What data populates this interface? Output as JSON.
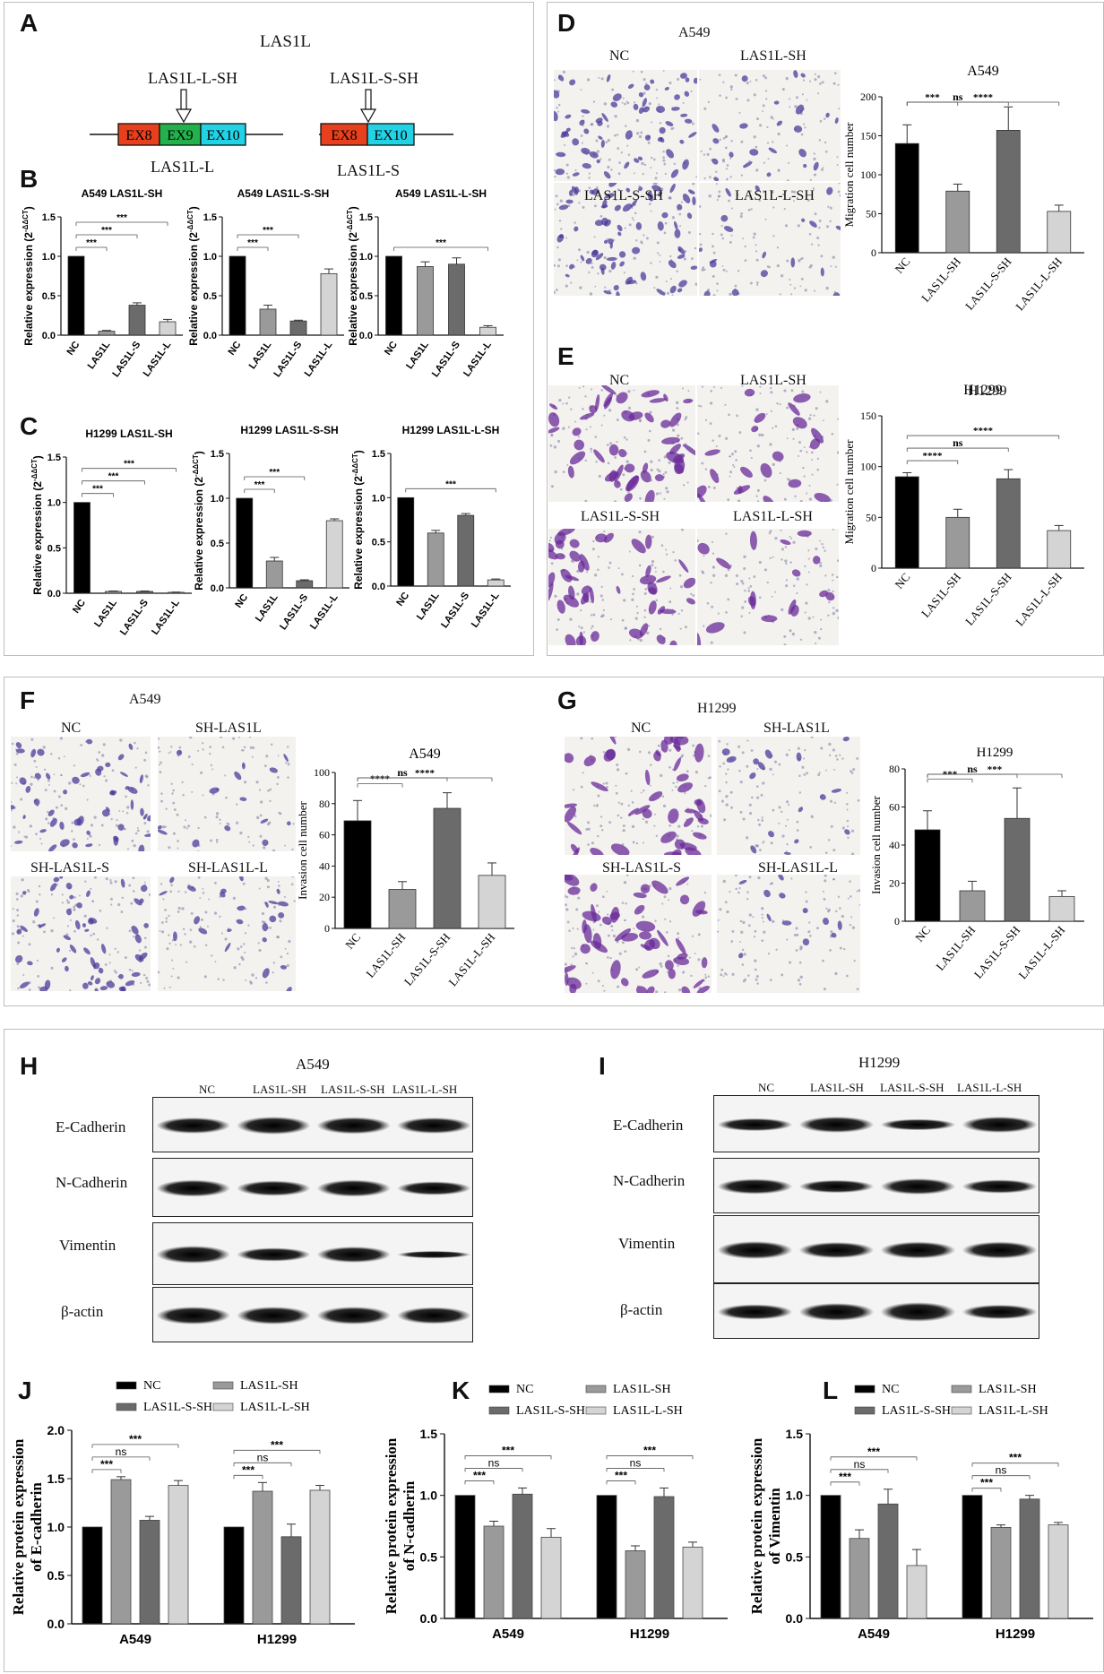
{
  "panels": {
    "A": "A",
    "B": "B",
    "C": "C",
    "D": "D",
    "E": "E",
    "F": "F",
    "G": "G",
    "H": "H",
    "I": "I",
    "J": "J",
    "K": "K",
    "L": "L"
  },
  "panel_a": {
    "gene": "LAS1L",
    "left": {
      "arrow_label": "LAS1L-L-SH",
      "isoform": "LAS1L-L",
      "exons": [
        "EX8",
        "EX9",
        "EX10"
      ]
    },
    "right": {
      "arrow_label": "LAS1L-S-SH",
      "isoform": "LAS1L-S",
      "exons": [
        "EX8",
        "EX10"
      ]
    }
  },
  "panel_d": {
    "cell": "A549",
    "tiles": [
      "NC",
      "LAS1L-SH",
      "LAS1L-S-SH",
      "LAS1L-L-SH"
    ]
  },
  "panel_e": {
    "cell": "H1299",
    "tiles": [
      "NC",
      "LAS1L-SH",
      "LAS1L-S-SH",
      "LAS1L-L-SH"
    ]
  },
  "panel_f": {
    "cell": "A549",
    "tiles": [
      "NC",
      "SH-LAS1L",
      "SH-LAS1L-S",
      "SH-LAS1L-L"
    ]
  },
  "panel_g": {
    "cell": "H1299",
    "tiles": [
      "NC",
      "SH-LAS1L",
      "SH-LAS1L-S",
      "SH-LAS1L-L"
    ]
  },
  "panel_h": {
    "cell": "A549",
    "lanes": [
      "NC",
      "LAS1L-SH",
      "LAS1L-S-SH",
      "LAS1L-L-SH"
    ],
    "rows": [
      "E-Cadherin",
      "N-Cadherin",
      "Vimentin",
      "β-actin"
    ]
  },
  "panel_i": {
    "cell": "H1299",
    "lanes": [
      "NC",
      "LAS1L-SH",
      "LAS1L-S-SH",
      "LAS1L-L-SH"
    ],
    "rows": [
      "E-Cadherin",
      "N-Cadherin",
      "Vimentin",
      "β-actin"
    ]
  },
  "colors": {
    "black": "#000000",
    "mid_gray": "#9a9a9a",
    "dark_gray": "#6b6b6b",
    "light_gray": "#d4d4d4",
    "exon8": "#e8401c",
    "exon9": "#22b14c",
    "exon10": "#22d3e6"
  },
  "chart_data": [
    {
      "id": "B1",
      "type": "bar",
      "title": "A549 LAS1L-SH",
      "ylabel": "Relative expression (2^-ΔΔCT)",
      "ylim": [
        0,
        1.5
      ],
      "yticks": [
        "0.0",
        "0.5",
        "1.0",
        "1.5"
      ],
      "categories": [
        "NC",
        "LAS1L",
        "LAS1L-S",
        "LAS1L-L"
      ],
      "values": [
        1.0,
        0.05,
        0.38,
        0.17
      ],
      "errors": [
        0,
        0.01,
        0.03,
        0.03
      ],
      "colors": [
        "#000000",
        "#9a9a9a",
        "#6b6b6b",
        "#d4d4d4"
      ],
      "sig": [
        {
          "from": 0,
          "to": 1,
          "label": "***"
        },
        {
          "from": 0,
          "to": 2,
          "label": "***"
        },
        {
          "from": 0,
          "to": 3,
          "label": "***"
        }
      ]
    },
    {
      "id": "B2",
      "type": "bar",
      "title": "A549 LAS1L-S-SH",
      "ylabel": "Relative expression (2^-ΔΔCT)",
      "ylim": [
        0,
        1.5
      ],
      "yticks": [
        "0.0",
        "0.5",
        "1.0",
        "1.5"
      ],
      "categories": [
        "NC",
        "LAS1L",
        "LAS1L-S",
        "LAS1L-L"
      ],
      "values": [
        1.0,
        0.33,
        0.18,
        0.78
      ],
      "errors": [
        0,
        0.05,
        0.01,
        0.06
      ],
      "colors": [
        "#000000",
        "#9a9a9a",
        "#6b6b6b",
        "#d4d4d4"
      ],
      "sig": [
        {
          "from": 0,
          "to": 1,
          "label": "***"
        },
        {
          "from": 0,
          "to": 2,
          "label": "***"
        }
      ]
    },
    {
      "id": "B3",
      "type": "bar",
      "title": "A549 LAS1L-L-SH",
      "ylabel": "Relative expression (2^-ΔΔCT)",
      "ylim": [
        0,
        1.5
      ],
      "yticks": [
        "0.0",
        "0.5",
        "1.0",
        "1.5"
      ],
      "categories": [
        "NC",
        "LAS1L",
        "LAS1L-S",
        "LAS1L-L"
      ],
      "values": [
        1.0,
        0.87,
        0.9,
        0.1
      ],
      "errors": [
        0,
        0.06,
        0.08,
        0.02
      ],
      "colors": [
        "#000000",
        "#9a9a9a",
        "#6b6b6b",
        "#d4d4d4"
      ],
      "sig": [
        {
          "from": 0,
          "to": 3,
          "label": "***"
        }
      ]
    },
    {
      "id": "C1",
      "type": "bar",
      "title": "H1299 LAS1L-SH",
      "ylabel": "Relative expression (2^-ΔΔCT)",
      "ylim": [
        0,
        1.5
      ],
      "yticks": [
        "0.0",
        "0.5",
        "1.0",
        "1.5"
      ],
      "categories": [
        "NC",
        "LAS1L",
        "LAS1L-S",
        "LAS1L-L"
      ],
      "values": [
        1.0,
        0.02,
        0.02,
        0.01
      ],
      "errors": [
        0,
        0.005,
        0.005,
        0.003
      ],
      "colors": [
        "#000000",
        "#9a9a9a",
        "#6b6b6b",
        "#d4d4d4"
      ],
      "sig": [
        {
          "from": 0,
          "to": 1,
          "label": "***"
        },
        {
          "from": 0,
          "to": 2,
          "label": "***"
        },
        {
          "from": 0,
          "to": 3,
          "label": "***"
        }
      ]
    },
    {
      "id": "C2",
      "type": "bar",
      "title": "H1299 LAS1L-S-SH",
      "ylabel": "Relative expression (2^-ΔΔCT)",
      "ylim": [
        0,
        1.5
      ],
      "yticks": [
        "0.0",
        "0.5",
        "1.0",
        "1.5"
      ],
      "categories": [
        "NC",
        "LAS1L",
        "LAS1L-S",
        "LAS1L-L"
      ],
      "values": [
        1.0,
        0.3,
        0.08,
        0.75
      ],
      "errors": [
        0,
        0.04,
        0.01,
        0.02
      ],
      "colors": [
        "#000000",
        "#9a9a9a",
        "#6b6b6b",
        "#d4d4d4"
      ],
      "sig": [
        {
          "from": 0,
          "to": 1,
          "label": "***"
        },
        {
          "from": 0,
          "to": 2,
          "label": "***"
        }
      ]
    },
    {
      "id": "C3",
      "type": "bar",
      "title": "H1299 LAS1L-L-SH",
      "ylabel": "Relative expression (2^-ΔΔCT)",
      "ylim": [
        0,
        1.5
      ],
      "yticks": [
        "0.0",
        "0.5",
        "1.0",
        "1.5"
      ],
      "categories": [
        "NC",
        "LAS1L",
        "LAS1L-S",
        "LAS1L-L"
      ],
      "values": [
        1.0,
        0.6,
        0.8,
        0.07
      ],
      "errors": [
        0,
        0.03,
        0.02,
        0.01
      ],
      "colors": [
        "#000000",
        "#9a9a9a",
        "#6b6b6b",
        "#d4d4d4"
      ],
      "sig": [
        {
          "from": 0,
          "to": 3,
          "label": "***"
        }
      ]
    },
    {
      "id": "D",
      "type": "bar",
      "title": "A549",
      "ylabel": "Migration cell number",
      "ylim": [
        0,
        200
      ],
      "yticks": [
        "0",
        "50",
        "100",
        "150",
        "200"
      ],
      "categories": [
        "NC",
        "LAS1L-SH",
        "LAS1L-S-SH",
        "LAS1L-L-SH"
      ],
      "values": [
        140,
        79,
        157,
        53
      ],
      "errors": [
        24,
        9,
        30,
        8
      ],
      "colors": [
        "#000000",
        "#9a9a9a",
        "#6b6b6b",
        "#d4d4d4"
      ],
      "sig": [
        {
          "from": 0,
          "to": 1,
          "label": "***"
        },
        {
          "from": 0,
          "to": 2,
          "label": "ns"
        },
        {
          "from": 0,
          "to": 3,
          "label": "****"
        }
      ]
    },
    {
      "id": "E",
      "type": "bar",
      "title": "H1299",
      "ylabel": "Migration cell number",
      "ylim": [
        0,
        150
      ],
      "yticks": [
        "0",
        "50",
        "100",
        "150"
      ],
      "categories": [
        "NC",
        "LAS1L-SH",
        "LAS1L-S-SH",
        "LAS1L-L-SH"
      ],
      "values": [
        90,
        50,
        88,
        37
      ],
      "errors": [
        4,
        8,
        9,
        5
      ],
      "colors": [
        "#000000",
        "#9a9a9a",
        "#6b6b6b",
        "#d4d4d4"
      ],
      "sig": [
        {
          "from": 0,
          "to": 1,
          "label": "****"
        },
        {
          "from": 0,
          "to": 2,
          "label": "ns"
        },
        {
          "from": 0,
          "to": 3,
          "label": "****"
        }
      ]
    },
    {
      "id": "F",
      "type": "bar",
      "title": "A549",
      "ylabel": "Invasion cell number",
      "ylim": [
        0,
        100
      ],
      "yticks": [
        "0",
        "20",
        "40",
        "60",
        "80",
        "100"
      ],
      "categories": [
        "NC",
        "LAS1L-SH",
        "LAS1L-S-SH",
        "LAS1L-L-SH"
      ],
      "values": [
        69,
        25,
        77,
        34
      ],
      "errors": [
        13,
        5,
        10,
        8
      ],
      "colors": [
        "#000000",
        "#9a9a9a",
        "#6b6b6b",
        "#d4d4d4"
      ],
      "sig": [
        {
          "from": 0,
          "to": 1,
          "label": "****"
        },
        {
          "from": 0,
          "to": 2,
          "label": "ns"
        },
        {
          "from": 0,
          "to": 3,
          "label": "****"
        }
      ]
    },
    {
      "id": "G",
      "type": "bar",
      "title": "H1299",
      "ylabel": "Invasion cell number",
      "ylim": [
        0,
        80
      ],
      "yticks": [
        "0",
        "20",
        "40",
        "60",
        "80"
      ],
      "categories": [
        "NC",
        "LAS1L-SH",
        "LAS1L-S-SH",
        "LAS1L-L-SH"
      ],
      "values": [
        48,
        16,
        54,
        13
      ],
      "errors": [
        10,
        5,
        16,
        3
      ],
      "colors": [
        "#000000",
        "#9a9a9a",
        "#6b6b6b",
        "#d4d4d4"
      ],
      "sig": [
        {
          "from": 0,
          "to": 1,
          "label": "***"
        },
        {
          "from": 0,
          "to": 2,
          "label": "ns"
        },
        {
          "from": 0,
          "to": 3,
          "label": "***"
        }
      ]
    },
    {
      "id": "J",
      "type": "bar",
      "title": "",
      "ylabel": "Relative protein expression of E-cadherin",
      "ylim": [
        0,
        2.0
      ],
      "yticks": [
        "0.0",
        "0.5",
        "1.0",
        "1.5",
        "2.0"
      ],
      "categories": [
        "A549",
        "H1299"
      ],
      "series": [
        {
          "name": "NC",
          "values": [
            1.0,
            1.0
          ],
          "errors": [
            0,
            0
          ],
          "color": "#000000"
        },
        {
          "name": "LAS1L-SH",
          "values": [
            1.49,
            1.37
          ],
          "errors": [
            0.03,
            0.09
          ],
          "color": "#9a9a9a"
        },
        {
          "name": "LAS1L-S-SH",
          "values": [
            1.07,
            0.9
          ],
          "errors": [
            0.04,
            0.13
          ],
          "color": "#6b6b6b"
        },
        {
          "name": "LAS1L-L-SH",
          "values": [
            1.43,
            1.38
          ],
          "errors": [
            0.05,
            0.05
          ],
          "color": "#d4d4d4"
        }
      ],
      "sig": [
        {
          "from": 0,
          "to": 1,
          "label": "***"
        },
        {
          "from": 0,
          "to": 2,
          "label": "ns"
        },
        {
          "from": 0,
          "to": 3,
          "label": "***"
        }
      ]
    },
    {
      "id": "K",
      "type": "bar",
      "title": "",
      "ylabel": "Relative protein expression of N-cadherin",
      "ylim": [
        0,
        1.5
      ],
      "yticks": [
        "0.0",
        "0.5",
        "1.0",
        "1.5"
      ],
      "categories": [
        "A549",
        "H1299"
      ],
      "series": [
        {
          "name": "NC",
          "values": [
            1.0,
            1.0
          ],
          "errors": [
            0,
            0
          ],
          "color": "#000000"
        },
        {
          "name": "LAS1L-SH",
          "values": [
            0.75,
            0.55
          ],
          "errors": [
            0.04,
            0.04
          ],
          "color": "#9a9a9a"
        },
        {
          "name": "LAS1L-S-SH",
          "values": [
            1.01,
            0.99
          ],
          "errors": [
            0.05,
            0.07
          ],
          "color": "#6b6b6b"
        },
        {
          "name": "LAS1L-L-SH",
          "values": [
            0.66,
            0.58
          ],
          "errors": [
            0.07,
            0.04
          ],
          "color": "#d4d4d4"
        }
      ],
      "sig": [
        {
          "from": 0,
          "to": 1,
          "label": "***"
        },
        {
          "from": 0,
          "to": 2,
          "label": "ns"
        },
        {
          "from": 0,
          "to": 3,
          "label": "***"
        }
      ]
    },
    {
      "id": "L",
      "type": "bar",
      "title": "",
      "ylabel": "Relative protein expression of Vimentin",
      "ylim": [
        0,
        1.5
      ],
      "yticks": [
        "0.0",
        "0.5",
        "1.0",
        "1.5"
      ],
      "categories": [
        "A549",
        "H1299"
      ],
      "series": [
        {
          "name": "NC",
          "values": [
            1.0,
            1.0
          ],
          "errors": [
            0,
            0
          ],
          "color": "#000000"
        },
        {
          "name": "LAS1L-SH",
          "values": [
            0.65,
            0.74
          ],
          "errors": [
            0.07,
            0.02
          ],
          "color": "#9a9a9a"
        },
        {
          "name": "LAS1L-S-SH",
          "values": [
            0.93,
            0.97
          ],
          "errors": [
            0.12,
            0.03
          ],
          "color": "#6b6b6b"
        },
        {
          "name": "LAS1L-L-SH",
          "values": [
            0.43,
            0.76
          ],
          "errors": [
            0.13,
            0.02
          ],
          "color": "#d4d4d4"
        }
      ],
      "sig": [
        {
          "from": 0,
          "to": 1,
          "label": "***"
        },
        {
          "from": 0,
          "to": 2,
          "label": "ns"
        },
        {
          "from": 0,
          "to": 3,
          "label": "***"
        }
      ]
    }
  ]
}
